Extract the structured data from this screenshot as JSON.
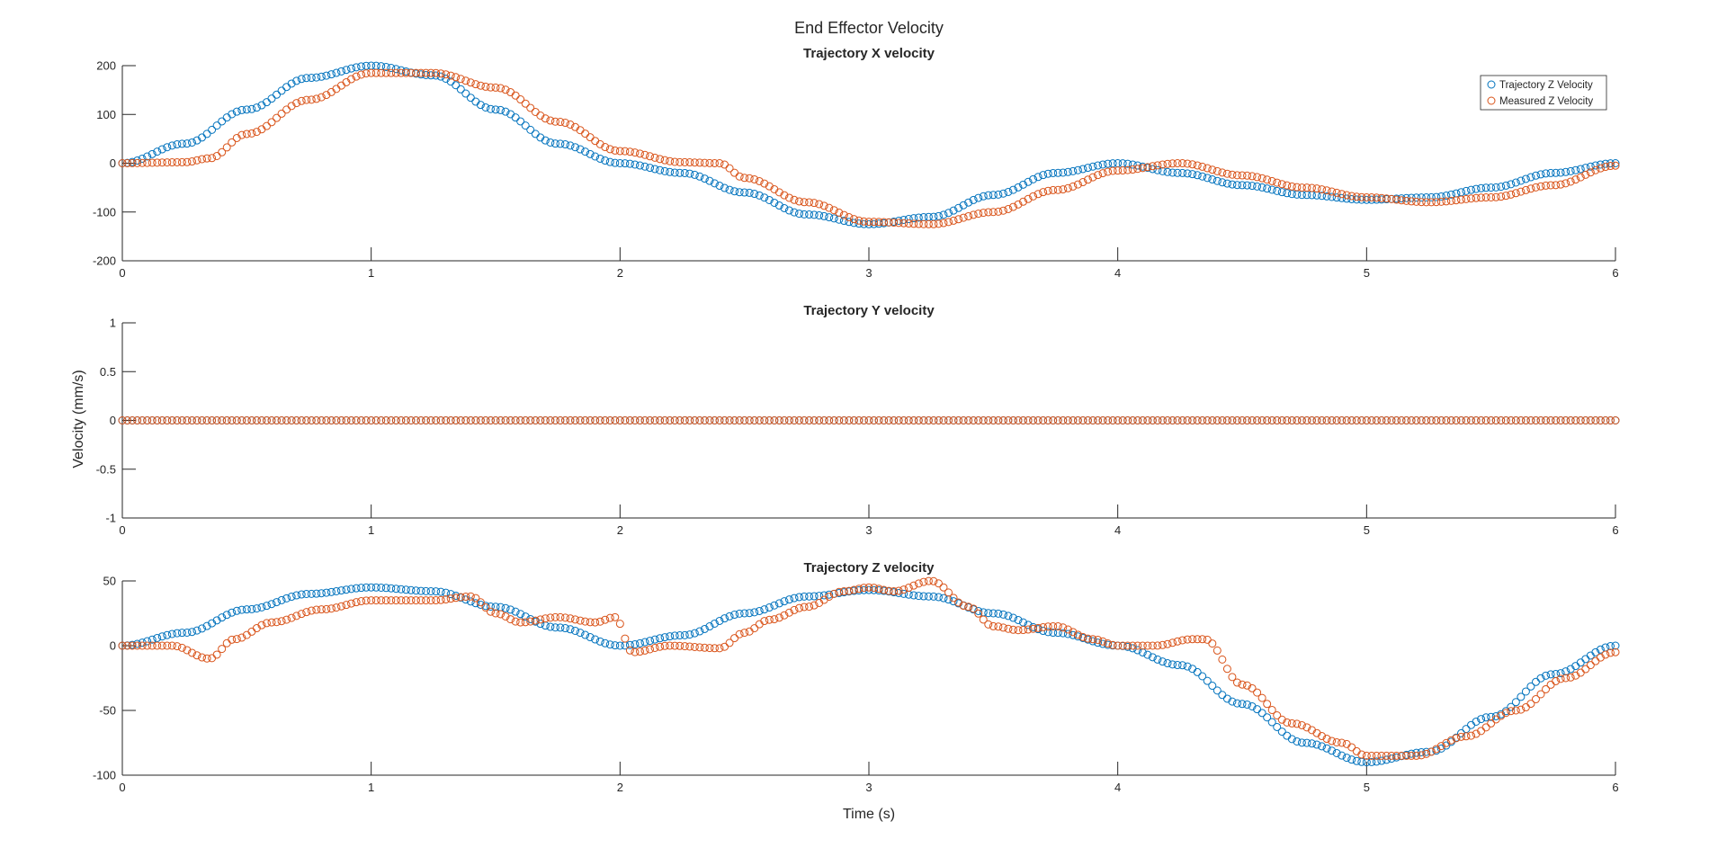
{
  "figure_title": "End Effector Velocity",
  "shared_ylabel": "Velocity (mm/s)",
  "shared_xlabel": "Time (s)",
  "colors": {
    "trajectory": "#0072BD",
    "measured": "#D95319",
    "axis": "#262626"
  },
  "legend": {
    "placement": "top-right of first panel",
    "entries": [
      "Trajectory Z Velocity",
      "Measured Z Velocity"
    ]
  },
  "chart_data": [
    {
      "type": "scatter",
      "title": "Trajectory X velocity",
      "xlim": [
        0,
        6
      ],
      "ylim": [
        -200,
        200
      ],
      "xticks": [
        "0",
        "1",
        "2",
        "3",
        "4",
        "5",
        "6"
      ],
      "yticks": [
        "200",
        "100",
        "0",
        "-100",
        "-200"
      ],
      "grid": false,
      "series": [
        {
          "name": "Trajectory Z Velocity",
          "x": [
            0,
            0.25,
            0.5,
            0.75,
            1.0,
            1.25,
            1.5,
            1.75,
            2.0,
            2.25,
            2.5,
            2.75,
            3.0,
            3.25,
            3.5,
            3.75,
            4.0,
            4.25,
            4.5,
            4.75,
            5.0,
            5.25,
            5.5,
            5.75,
            6.0
          ],
          "values": [
            0,
            40,
            110,
            175,
            200,
            180,
            110,
            40,
            0,
            -20,
            -60,
            -105,
            -125,
            -110,
            -65,
            -20,
            0,
            -20,
            -45,
            -65,
            -75,
            -70,
            -50,
            -20,
            0
          ]
        },
        {
          "name": "Measured Z Velocity",
          "x": [
            0,
            0.25,
            0.35,
            0.5,
            0.75,
            1.0,
            1.25,
            1.5,
            1.75,
            2.0,
            2.25,
            2.4,
            2.5,
            2.75,
            3.0,
            3.25,
            3.5,
            3.75,
            4.0,
            4.25,
            4.5,
            4.75,
            5.0,
            5.25,
            5.5,
            5.75,
            6.0
          ],
          "values": [
            0,
            2,
            10,
            60,
            130,
            185,
            185,
            155,
            85,
            25,
            2,
            0,
            -30,
            -80,
            -120,
            -125,
            -100,
            -55,
            -15,
            0,
            -25,
            -50,
            -70,
            -80,
            -70,
            -45,
            -5
          ]
        }
      ]
    },
    {
      "type": "scatter",
      "title": "Trajectory Y velocity",
      "xlim": [
        0,
        6
      ],
      "ylim": [
        -1,
        1
      ],
      "xticks": [
        "0",
        "1",
        "2",
        "3",
        "4",
        "5",
        "6"
      ],
      "yticks": [
        "1",
        "0.5",
        "0",
        "-0.5",
        "-1"
      ],
      "grid": false,
      "series": [
        {
          "name": "Trajectory Z Velocity",
          "x": [
            0,
            6
          ],
          "values": [
            0,
            0
          ]
        },
        {
          "name": "Measured Z Velocity",
          "x": [
            0,
            6
          ],
          "values": [
            0,
            0
          ]
        }
      ]
    },
    {
      "type": "scatter",
      "title": "Trajectory Z velocity",
      "xlim": [
        0,
        6
      ],
      "ylim": [
        -100,
        50
      ],
      "xticks": [
        "0",
        "1",
        "2",
        "3",
        "4",
        "5",
        "6"
      ],
      "yticks": [
        "50",
        "0",
        "-50",
        "-100"
      ],
      "grid": false,
      "series": [
        {
          "name": "Trajectory Z Velocity",
          "x": [
            0,
            0.25,
            0.5,
            0.75,
            1.0,
            1.25,
            1.5,
            1.75,
            2.0,
            2.25,
            2.5,
            2.75,
            3.0,
            3.25,
            3.5,
            3.75,
            4.0,
            4.25,
            4.5,
            4.75,
            5.0,
            5.25,
            5.5,
            5.75,
            6.0
          ],
          "values": [
            0,
            10,
            28,
            40,
            45,
            42,
            30,
            14,
            0,
            8,
            25,
            38,
            43,
            38,
            25,
            10,
            0,
            -15,
            -45,
            -75,
            -90,
            -82,
            -55,
            -22,
            0
          ]
        },
        {
          "name": "Measured Z Velocity",
          "x": [
            0,
            0.2,
            0.35,
            0.45,
            0.6,
            0.8,
            1.0,
            1.25,
            1.4,
            1.5,
            1.6,
            1.75,
            1.9,
            1.98,
            2.05,
            2.2,
            2.4,
            2.5,
            2.6,
            2.75,
            2.9,
            3.0,
            3.1,
            3.25,
            3.4,
            3.5,
            3.6,
            3.75,
            3.9,
            4.0,
            4.15,
            4.3,
            4.35,
            4.5,
            4.7,
            4.9,
            5.0,
            5.2,
            5.4,
            5.6,
            5.8,
            6.0
          ],
          "values": [
            0,
            0,
            -10,
            5,
            18,
            28,
            35,
            35,
            38,
            25,
            18,
            22,
            18,
            22,
            -5,
            0,
            -2,
            10,
            20,
            30,
            42,
            45,
            42,
            50,
            30,
            15,
            12,
            15,
            5,
            0,
            0,
            5,
            5,
            -30,
            -60,
            -75,
            -85,
            -85,
            -70,
            -50,
            -25,
            -5
          ]
        }
      ]
    }
  ]
}
